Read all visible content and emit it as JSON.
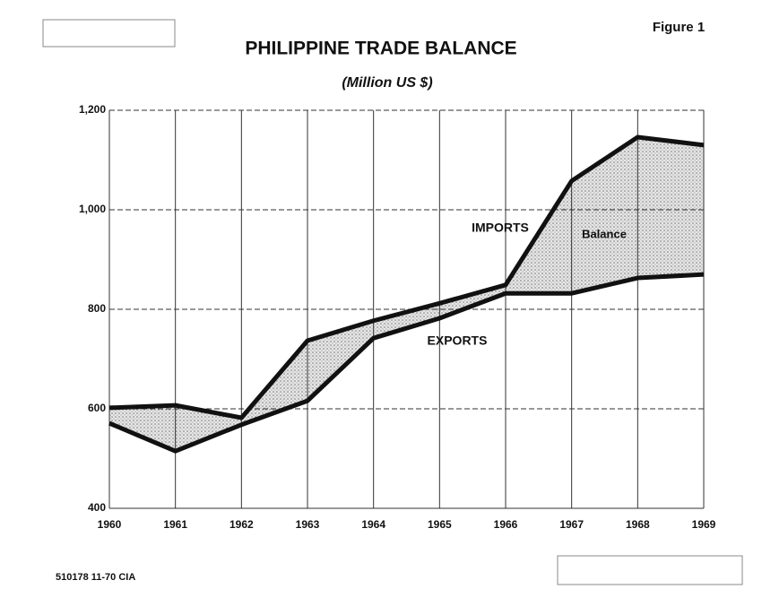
{
  "chart_data": {
    "type": "line",
    "title": "PHILIPPINE TRADE BALANCE",
    "subtitle": "(Million US $)",
    "figure_label": "Figure 1",
    "footnote": "510178 11-70 CIA",
    "categories": [
      "1960",
      "1961",
      "1962",
      "1963",
      "1964",
      "1965",
      "1966",
      "1967",
      "1968",
      "1969"
    ],
    "series": [
      {
        "name": "IMPORTS",
        "color": "#111111",
        "values": [
          602,
          607,
          582,
          737,
          777,
          812,
          849,
          1058,
          1146,
          1130
        ]
      },
      {
        "name": "EXPORTS",
        "color": "#111111",
        "values": [
          571,
          515,
          568,
          616,
          742,
          782,
          832,
          832,
          863,
          870
        ]
      }
    ],
    "area_label": "Balance",
    "ylim": [
      400,
      1200
    ],
    "yticks": [
      400,
      600,
      800,
      {
        "value": 1000,
        "label": "1,000"
      },
      {
        "value": 1200,
        "label": "1,200"
      }
    ],
    "grid": true
  }
}
